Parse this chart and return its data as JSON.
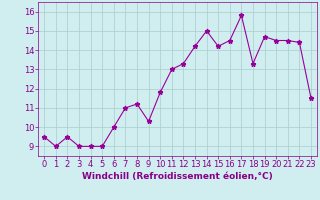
{
  "x": [
    0,
    1,
    2,
    3,
    4,
    5,
    6,
    7,
    8,
    9,
    10,
    11,
    12,
    13,
    14,
    15,
    16,
    17,
    18,
    19,
    20,
    21,
    22,
    23
  ],
  "y": [
    9.5,
    9.0,
    9.5,
    9.0,
    9.0,
    9.0,
    10.0,
    11.0,
    11.2,
    10.3,
    11.8,
    13.0,
    13.3,
    14.2,
    15.0,
    14.2,
    14.5,
    15.8,
    13.3,
    14.7,
    14.5,
    14.5,
    14.4,
    11.5
  ],
  "line_color": "#990099",
  "marker": "*",
  "marker_size": 3.5,
  "bg_color": "#d0eef0",
  "grid_color": "#aacccc",
  "xlabel": "Windchill (Refroidissement éolien,°C)",
  "xlabel_color": "#880088",
  "xlabel_fontsize": 6.5,
  "tick_label_color": "#880088",
  "tick_fontsize": 6.0,
  "ylim": [
    8.5,
    16.5
  ],
  "xlim": [
    -0.5,
    23.5
  ],
  "yticks": [
    9,
    10,
    11,
    12,
    13,
    14,
    15,
    16
  ],
  "xticks": [
    0,
    1,
    2,
    3,
    4,
    5,
    6,
    7,
    8,
    9,
    10,
    11,
    12,
    13,
    14,
    15,
    16,
    17,
    18,
    19,
    20,
    21,
    22,
    23
  ],
  "line_width": 0.8
}
